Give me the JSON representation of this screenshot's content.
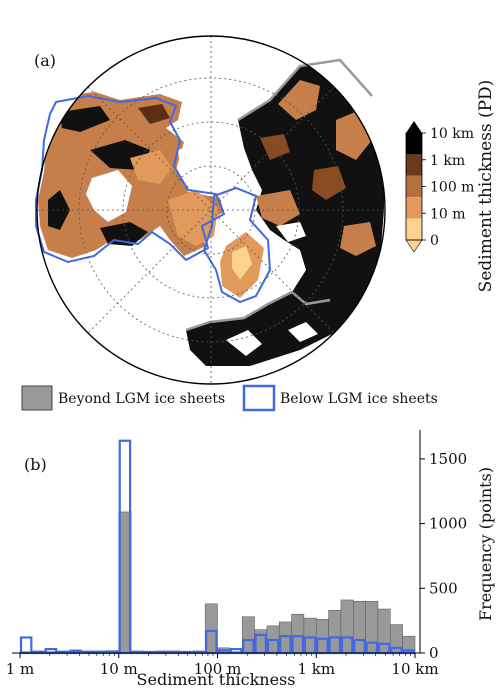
{
  "panel_a": {
    "label": "(a)",
    "colorbar": {
      "title": "Sediment thickness (PD)",
      "ticks": [
        "10 km",
        "1 km",
        "100 m",
        "10 m",
        "0"
      ],
      "colors": [
        "#000000",
        "#6b3a1b",
        "#b4703f",
        "#e19a5c",
        "#ffd18f"
      ]
    }
  },
  "legend": {
    "items": [
      {
        "label": "Beyond LGM ice sheets",
        "color": "#999999",
        "style": "filled"
      },
      {
        "label": "Below LGM ice sheets",
        "color": "#4169e1",
        "style": "outline"
      }
    ]
  },
  "chart_data": {
    "type": "bar",
    "panel_label": "(b)",
    "xlabel": "Sediment thickness",
    "ylabel": "Frequency (points)",
    "xscale": "log",
    "xlim": [
      1,
      10000
    ],
    "ylim": [
      0,
      1700
    ],
    "xticks": [
      "1 m",
      "10 m",
      "100 m",
      "1 km",
      "10 km"
    ],
    "yticks": [
      "0",
      "500",
      "1000",
      "1500"
    ],
    "bin_width_log10": 0.125,
    "bins_log10_start": [
      0,
      0.125,
      0.25,
      0.375,
      0.5,
      0.625,
      0.75,
      0.875,
      1.0,
      1.125,
      1.25,
      1.375,
      1.5,
      1.625,
      1.75,
      1.875,
      2.0,
      2.125,
      2.25,
      2.375,
      2.5,
      2.625,
      2.75,
      2.875,
      3.0,
      3.125,
      3.25,
      3.375,
      3.5,
      3.625,
      3.75,
      3.875
    ],
    "series": [
      {
        "name": "Beyond LGM ice sheets",
        "style": "filled",
        "values": [
          10,
          8,
          10,
          12,
          10,
          14,
          10,
          12,
          1090,
          10,
          8,
          8,
          10,
          8,
          12,
          380,
          40,
          10,
          280,
          180,
          210,
          240,
          300,
          270,
          260,
          330,
          410,
          400,
          400,
          340,
          220,
          130
        ]
      },
      {
        "name": "Below LGM ice sheets",
        "style": "outline",
        "values": [
          120,
          10,
          30,
          10,
          18,
          10,
          10,
          12,
          1640,
          10,
          8,
          10,
          10,
          8,
          10,
          170,
          20,
          30,
          100,
          140,
          100,
          130,
          130,
          120,
          110,
          120,
          120,
          100,
          80,
          70,
          40,
          20
        ]
      }
    ]
  }
}
